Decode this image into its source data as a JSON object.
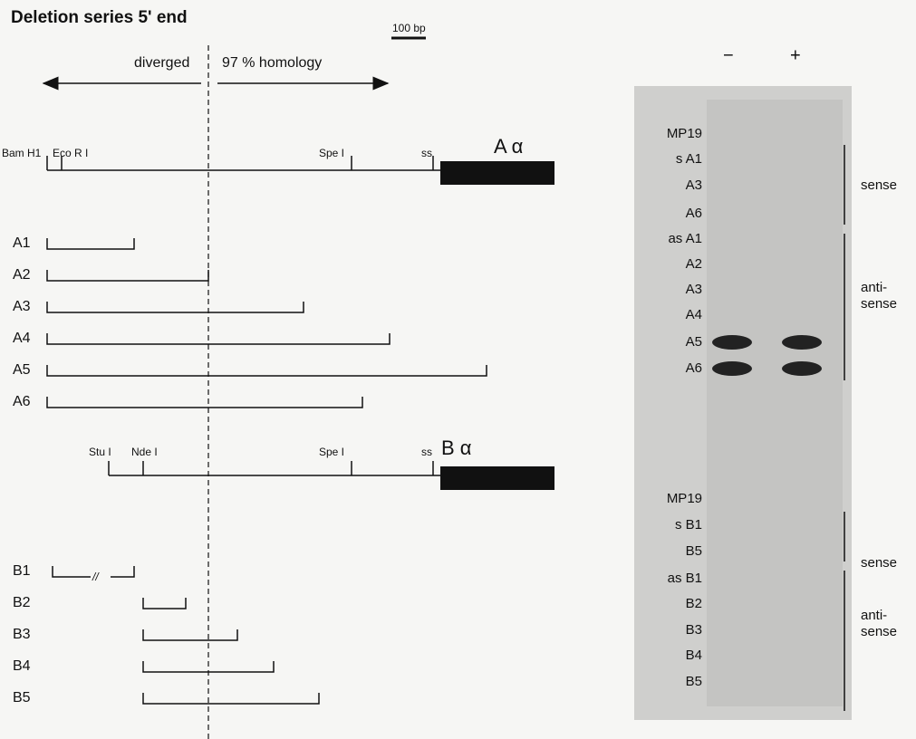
{
  "figure": {
    "title": "Deletion series 5' end",
    "scale_bar": "100 bp",
    "diverged": "diverged",
    "homology": "97 % homology",
    "a_map": {
      "sites": [
        "Bam H1",
        "Eco R I",
        "Spe I",
        "ss"
      ],
      "gene": "A α",
      "constructs": [
        "A1",
        "A2",
        "A3",
        "A4",
        "A5",
        "A6"
      ]
    },
    "b_map": {
      "sites": [
        "Stu I",
        "Nde I",
        "Spe I",
        "ss"
      ],
      "gene": "B α",
      "constructs": [
        "B1",
        "B2",
        "B3",
        "B4",
        "B5"
      ],
      "break": "//"
    },
    "gel": {
      "minus": "−",
      "plus": "+",
      "a_lanes": [
        "MP19",
        "s A1",
        "A3",
        "A6",
        "as A1",
        "A2",
        "A3",
        "A4",
        "A5",
        "A6"
      ],
      "a_groups": [
        "sense",
        "anti-\nsense"
      ],
      "b_lanes": [
        "MP19",
        "s B1",
        "B5",
        "as B1",
        "B2",
        "B3",
        "B4",
        "B5"
      ],
      "b_groups": [
        "sense",
        "anti-\nsense"
      ]
    }
  }
}
